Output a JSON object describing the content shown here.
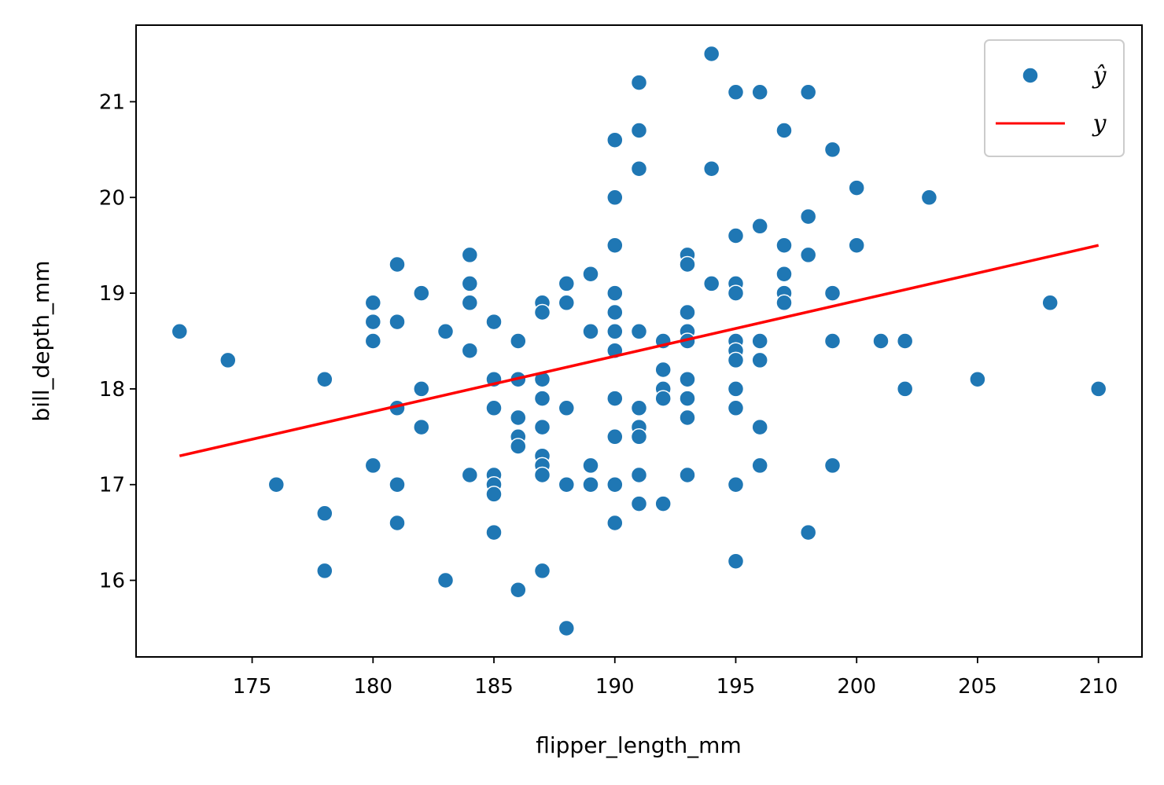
{
  "chart_data": {
    "type": "scatter",
    "xlabel": "flipper_length_mm",
    "ylabel": "bill_depth_mm",
    "xlim": [
      170.2,
      211.8
    ],
    "ylim": [
      15.2,
      21.8
    ],
    "x_ticks": [
      175,
      180,
      185,
      190,
      195,
      200,
      205,
      210
    ],
    "y_ticks": [
      16,
      17,
      18,
      19,
      20,
      21
    ],
    "grid": false,
    "legend_placement": "top-right",
    "series": [
      {
        "name": "ŷ",
        "kind": "scatter",
        "color": "#1f77b4",
        "points": [
          [
            172,
            18.6
          ],
          [
            174,
            18.3
          ],
          [
            176,
            17.0
          ],
          [
            178,
            18.1
          ],
          [
            178,
            16.7
          ],
          [
            178,
            16.1
          ],
          [
            180,
            18.9
          ],
          [
            180,
            18.7
          ],
          [
            180,
            18.5
          ],
          [
            180,
            17.2
          ],
          [
            181,
            19.3
          ],
          [
            181,
            18.7
          ],
          [
            181,
            17.8
          ],
          [
            181,
            17.0
          ],
          [
            181,
            16.6
          ],
          [
            182,
            19.0
          ],
          [
            182,
            18.0
          ],
          [
            182,
            17.6
          ],
          [
            183,
            18.6
          ],
          [
            183,
            16.0
          ],
          [
            184,
            19.4
          ],
          [
            184,
            19.1
          ],
          [
            184,
            18.9
          ],
          [
            184,
            18.4
          ],
          [
            184,
            17.1
          ],
          [
            185,
            18.7
          ],
          [
            185,
            18.1
          ],
          [
            185,
            17.8
          ],
          [
            185,
            17.1
          ],
          [
            185,
            17.0
          ],
          [
            185,
            16.9
          ],
          [
            185,
            16.5
          ],
          [
            186,
            18.5
          ],
          [
            186,
            18.1
          ],
          [
            186,
            17.7
          ],
          [
            186,
            17.5
          ],
          [
            186,
            17.4
          ],
          [
            186,
            15.9
          ],
          [
            187,
            18.9
          ],
          [
            187,
            18.8
          ],
          [
            187,
            18.1
          ],
          [
            187,
            17.9
          ],
          [
            187,
            17.6
          ],
          [
            187,
            17.3
          ],
          [
            187,
            17.2
          ],
          [
            187,
            17.1
          ],
          [
            187,
            16.1
          ],
          [
            188,
            19.1
          ],
          [
            188,
            18.9
          ],
          [
            188,
            17.8
          ],
          [
            188,
            17.0
          ],
          [
            188,
            15.5
          ],
          [
            189,
            19.2
          ],
          [
            189,
            18.6
          ],
          [
            189,
            17.2
          ],
          [
            189,
            17.0
          ],
          [
            190,
            20.6
          ],
          [
            190,
            20.0
          ],
          [
            190,
            19.5
          ],
          [
            190,
            19.0
          ],
          [
            190,
            18.8
          ],
          [
            190,
            18.6
          ],
          [
            190,
            18.4
          ],
          [
            190,
            17.9
          ],
          [
            190,
            17.5
          ],
          [
            190,
            17.0
          ],
          [
            190,
            16.6
          ],
          [
            191,
            21.2
          ],
          [
            191,
            20.7
          ],
          [
            191,
            20.3
          ],
          [
            191,
            18.6
          ],
          [
            191,
            17.8
          ],
          [
            191,
            17.6
          ],
          [
            191,
            17.5
          ],
          [
            191,
            17.1
          ],
          [
            191,
            16.8
          ],
          [
            192,
            18.5
          ],
          [
            192,
            18.2
          ],
          [
            192,
            18.0
          ],
          [
            192,
            17.9
          ],
          [
            192,
            16.8
          ],
          [
            193,
            19.4
          ],
          [
            193,
            19.3
          ],
          [
            193,
            18.8
          ],
          [
            193,
            18.6
          ],
          [
            193,
            18.5
          ],
          [
            193,
            18.1
          ],
          [
            193,
            17.9
          ],
          [
            193,
            17.7
          ],
          [
            193,
            17.1
          ],
          [
            194,
            21.5
          ],
          [
            194,
            20.3
          ],
          [
            194,
            19.1
          ],
          [
            195,
            21.1
          ],
          [
            195,
            19.6
          ],
          [
            195,
            19.1
          ],
          [
            195,
            19.0
          ],
          [
            195,
            18.5
          ],
          [
            195,
            18.4
          ],
          [
            195,
            18.3
          ],
          [
            195,
            18.0
          ],
          [
            195,
            17.8
          ],
          [
            195,
            17.0
          ],
          [
            195,
            16.2
          ],
          [
            196,
            21.1
          ],
          [
            196,
            19.7
          ],
          [
            196,
            18.5
          ],
          [
            196,
            18.3
          ],
          [
            196,
            17.6
          ],
          [
            196,
            17.2
          ],
          [
            197,
            20.7
          ],
          [
            197,
            19.5
          ],
          [
            197,
            19.2
          ],
          [
            197,
            19.0
          ],
          [
            197,
            18.9
          ],
          [
            198,
            21.1
          ],
          [
            198,
            19.8
          ],
          [
            198,
            19.4
          ],
          [
            198,
            16.5
          ],
          [
            199,
            20.5
          ],
          [
            199,
            19.0
          ],
          [
            199,
            18.5
          ],
          [
            199,
            17.2
          ],
          [
            200,
            20.1
          ],
          [
            200,
            19.5
          ],
          [
            201,
            18.5
          ],
          [
            202,
            18.5
          ],
          [
            202,
            18.0
          ],
          [
            203,
            20.0
          ],
          [
            205,
            18.1
          ],
          [
            208,
            18.9
          ],
          [
            210,
            18.0
          ]
        ]
      },
      {
        "name": "y",
        "kind": "line",
        "color": "#ff0000",
        "points": [
          [
            172,
            17.3
          ],
          [
            210,
            19.5
          ]
        ]
      }
    ]
  }
}
